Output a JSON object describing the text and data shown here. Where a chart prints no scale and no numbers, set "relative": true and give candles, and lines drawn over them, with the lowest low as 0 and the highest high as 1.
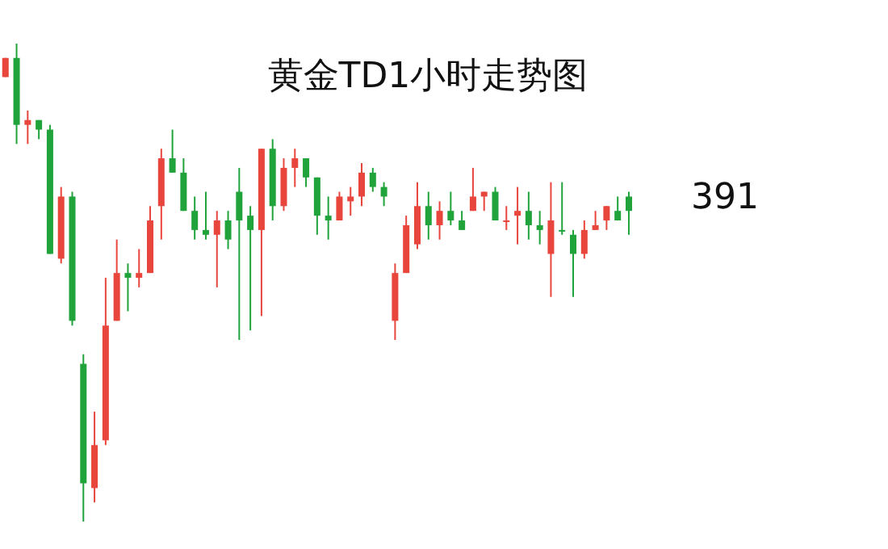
{
  "chart_data": {
    "type": "candlestick",
    "title": "黄金TD1小时走势图",
    "relative": true,
    "categories": [
      null,
      null,
      null,
      null,
      null,
      null,
      null,
      null,
      null,
      null,
      null,
      null,
      null,
      null,
      null,
      null,
      null,
      null,
      null,
      null,
      null,
      null,
      null,
      null,
      null,
      null,
      null,
      null,
      null,
      null,
      null,
      null,
      null,
      null,
      null,
      null,
      null,
      null,
      null,
      null,
      null,
      null,
      null,
      null,
      null,
      null,
      null,
      null,
      null,
      null,
      null,
      null,
      null,
      null,
      null,
      null,
      null
    ],
    "ohlc": [
      [
        0.93,
        0.97,
        0.93,
        0.97
      ],
      [
        0.97,
        1.0,
        0.79,
        0.83
      ],
      [
        0.83,
        0.86,
        0.79,
        0.84
      ],
      [
        0.84,
        0.84,
        0.8,
        0.82
      ],
      [
        0.82,
        0.83,
        0.56,
        0.56
      ],
      [
        0.55,
        0.7,
        0.54,
        0.68
      ],
      [
        0.68,
        0.69,
        0.41,
        0.42
      ],
      [
        0.33,
        0.35,
        0,
        0.08
      ],
      [
        0.07,
        0.23,
        0.04,
        0.16
      ],
      [
        0.17,
        0.51,
        0.16,
        0.41
      ],
      [
        0.42,
        0.59,
        0.42,
        0.52
      ],
      [
        0.52,
        0.54,
        0.44,
        0.51
      ],
      [
        0.51,
        0.57,
        0.49,
        0.52
      ],
      [
        0.52,
        0.66,
        0.52,
        0.63
      ],
      [
        0.66,
        0.78,
        0.59,
        0.76
      ],
      [
        0.76,
        0.82,
        0.73,
        0.73
      ],
      [
        0.73,
        0.76,
        0.65,
        0.65
      ],
      [
        0.65,
        0.68,
        0.59,
        0.61
      ],
      [
        0.61,
        0.69,
        0.59,
        0.6
      ],
      [
        0.6,
        0.65,
        0.49,
        0.63
      ],
      [
        0.63,
        0.65,
        0.57,
        0.59
      ],
      [
        0.69,
        0.74,
        0.38,
        0.63
      ],
      [
        0.64,
        0.66,
        0.4,
        0.61
      ],
      [
        0.61,
        0.78,
        0.43,
        0.78
      ],
      [
        0.78,
        0.8,
        0.63,
        0.66
      ],
      [
        0.66,
        0.76,
        0.65,
        0.74
      ],
      [
        0.74,
        0.78,
        0.7,
        0.76
      ],
      [
        0.76,
        0.76,
        0.7,
        0.72
      ],
      [
        0.72,
        0.72,
        0.6,
        0.64
      ],
      [
        0.64,
        0.68,
        0.59,
        0.63
      ],
      [
        0.63,
        0.69,
        0.63,
        0.68
      ],
      [
        0.67,
        0.7,
        0.64,
        0.68
      ],
      [
        0.68,
        0.75,
        0.66,
        0.73
      ],
      [
        0.73,
        0.74,
        0.69,
        0.7
      ],
      [
        0.7,
        0.71,
        0.66,
        0.68
      ],
      [
        0.42,
        0.54,
        0.38,
        0.52
      ],
      [
        0.52,
        0.64,
        0.52,
        0.62
      ],
      [
        0.58,
        0.71,
        0.57,
        0.66
      ],
      [
        0.66,
        0.69,
        0.59,
        0.62
      ],
      [
        0.62,
        0.67,
        0.59,
        0.65
      ],
      [
        0.65,
        0.69,
        0.62,
        0.63
      ],
      [
        0.63,
        0.65,
        0.61,
        0.61
      ],
      [
        0.65,
        0.74,
        0.65,
        0.68
      ],
      [
        0.68,
        0.69,
        0.65,
        0.69
      ],
      [
        0.69,
        0.7,
        0.63,
        0.63
      ],
      [
        0.63,
        0.66,
        0.61,
        0.63
      ],
      [
        0.64,
        0.7,
        0.58,
        0.65
      ],
      [
        0.65,
        0.69,
        0.59,
        0.62
      ],
      [
        0.62,
        0.65,
        0.58,
        0.61
      ],
      [
        0.56,
        0.71,
        0.47,
        0.63
      ],
      [
        0.61,
        0.71,
        0.6,
        0.61
      ],
      [
        0.6,
        0.61,
        0.47,
        0.56
      ],
      [
        0.56,
        0.63,
        0.55,
        0.61
      ],
      [
        0.61,
        0.65,
        0.61,
        0.62
      ],
      [
        0.63,
        0.66,
        0.61,
        0.66
      ],
      [
        0.65,
        0.68,
        0.63,
        0.63
      ],
      [
        0.68,
        0.69,
        0.6,
        0.65
      ]
    ],
    "colors": [
      "#e8453c",
      "#1fa33a",
      "#e8453c",
      "#1fa33a",
      "#1fa33a",
      "#e8453c",
      "#1fa33a",
      "#1fa33a",
      "#e8453c",
      "#e8453c",
      "#e8453c",
      "#1fa33a",
      "#e8453c",
      "#e8453c",
      "#e8453c",
      "#1fa33a",
      "#1fa33a",
      "#1fa33a",
      "#1fa33a",
      "#e8453c",
      "#1fa33a",
      "#1fa33a",
      "#1fa33a",
      "#e8453c",
      "#1fa33a",
      "#e8453c",
      "#e8453c",
      "#1fa33a",
      "#1fa33a",
      "#1fa33a",
      "#e8453c",
      "#e8453c",
      "#e8453c",
      "#1fa33a",
      "#1fa33a",
      "#e8453c",
      "#e8453c",
      "#e8453c",
      "#1fa33a",
      "#e8453c",
      "#1fa33a",
      "#1fa33a",
      "#e8453c",
      "#e8453c",
      "#1fa33a",
      "#e8453c",
      "#e8453c",
      "#1fa33a",
      "#1fa33a",
      "#e8453c",
      "#1fa33a",
      "#1fa33a",
      "#e8453c",
      "#e8453c",
      "#e8453c",
      "#1fa33a",
      "#1fa33a"
    ],
    "annotations": [
      "391"
    ]
  }
}
